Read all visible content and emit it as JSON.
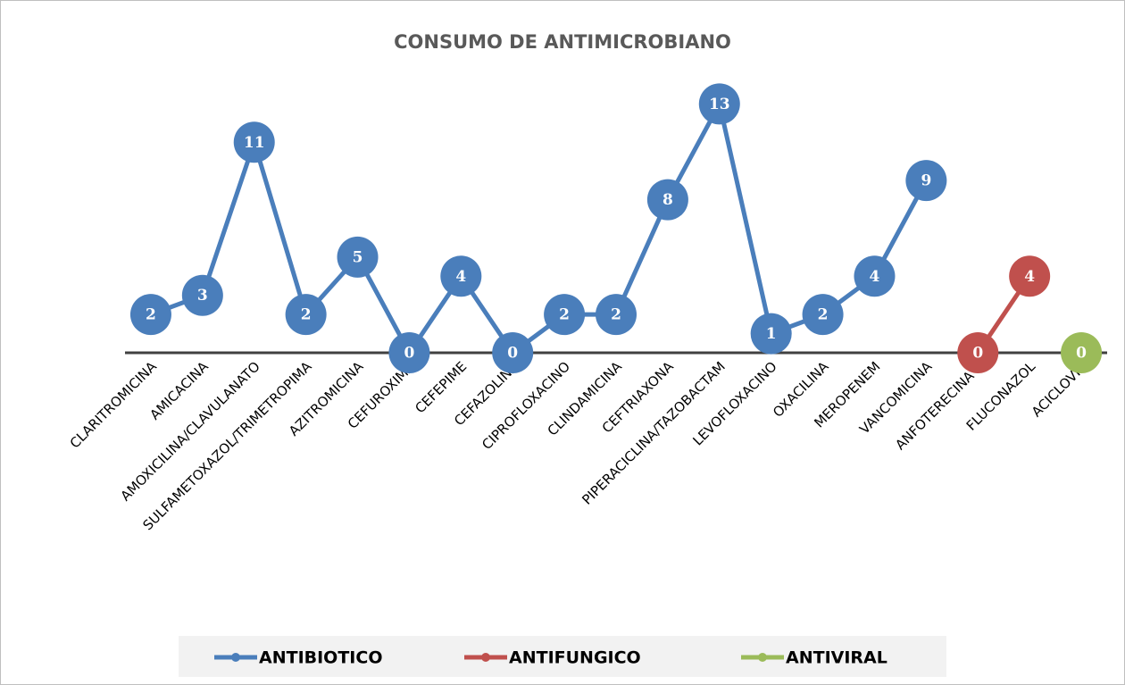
{
  "chart_data": {
    "type": "line",
    "title": "CONSUMO DE ANTIMICROBIANO",
    "categories": [
      "CLARITROMICINA",
      "AMICACINA",
      "AMOXICILINA/CLAVULANATO",
      "SULFAMETOXAZOL/TRIMETROPIMA",
      "AZITROMICINA",
      "CEFUROXIMA",
      "CEFEPIME",
      "CEFAZOLINA",
      "CIPROFLOXACINO",
      "CLINDAMICINA",
      "CEFTRIAXONA",
      "PIPERACICLINA/TAZOBACTAM",
      "LEVOFLOXACINO",
      "OXACILINA",
      "MEROPENEM",
      "VANCOMICINA",
      "ANFOTERECINA B",
      "FLUCONAZOL",
      "ACICLOVIR"
    ],
    "series": [
      {
        "name": "ANTIBIOTICO",
        "color": "#4a7ebb",
        "values": [
          2,
          3,
          11,
          2,
          5,
          0,
          4,
          0,
          2,
          2,
          8,
          13,
          1,
          2,
          4,
          9,
          null,
          null,
          null
        ]
      },
      {
        "name": "ANTIFUNGICO",
        "color": "#c0504d",
        "values": [
          null,
          null,
          null,
          null,
          null,
          null,
          null,
          null,
          null,
          null,
          null,
          null,
          null,
          null,
          null,
          null,
          0,
          4,
          null
        ]
      },
      {
        "name": "ANTIVIRAL",
        "color": "#9bbb59",
        "values": [
          null,
          null,
          null,
          null,
          null,
          null,
          null,
          null,
          null,
          null,
          null,
          null,
          null,
          null,
          null,
          null,
          null,
          null,
          0
        ]
      }
    ],
    "ylim": [
      0,
      14
    ],
    "legend": "bottom"
  }
}
